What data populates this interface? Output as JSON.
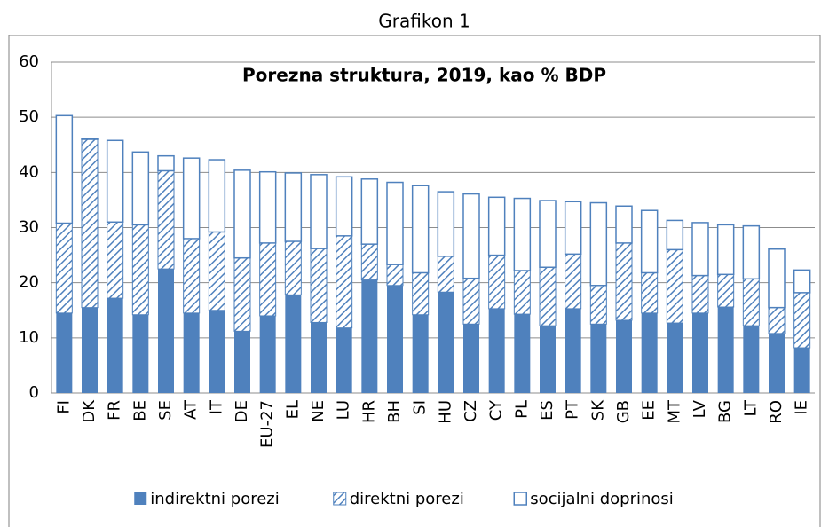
{
  "chart_data": {
    "type": "stacked-bar",
    "caption": "Grafikon 1",
    "title": "Porezna struktura, 2019, kao % BDP",
    "categories": [
      "FI",
      "DK",
      "FR",
      "BE",
      "SE",
      "AT",
      "IT",
      "DE",
      "EU-27",
      "EL",
      "NE",
      "LU",
      "HR",
      "BH",
      "SI",
      "HU",
      "CZ",
      "CY",
      "PL",
      "ES",
      "PT",
      "SK",
      "GB",
      "EE",
      "MT",
      "LV",
      "BG",
      "LT",
      "RO",
      "IE"
    ],
    "series": [
      {
        "name": "indirektni porezi",
        "color": "#4f81bd",
        "fill": "solid",
        "values": [
          14.5,
          15.5,
          17.2,
          14.2,
          22.5,
          14.5,
          15.0,
          11.2,
          14.0,
          17.8,
          12.8,
          11.8,
          20.5,
          19.5,
          14.2,
          18.3,
          12.5,
          15.3,
          14.3,
          12.2,
          15.3,
          12.5,
          13.2,
          14.5,
          12.7,
          14.5,
          15.6,
          12.2,
          10.8,
          8.2
        ]
      },
      {
        "name": "direktni porezi",
        "color": "#4f81bd",
        "fill": "hatch",
        "values": [
          16.3,
          30.5,
          13.8,
          16.3,
          17.8,
          13.5,
          14.2,
          13.3,
          13.2,
          9.7,
          13.4,
          16.7,
          6.5,
          3.8,
          7.6,
          6.5,
          8.3,
          9.7,
          7.9,
          10.6,
          9.9,
          7.0,
          14.0,
          7.3,
          13.3,
          6.8,
          5.9,
          8.5,
          4.7,
          10.0
        ]
      },
      {
        "name": "socijalni doprinosi",
        "color": "#4f81bd",
        "fill": "outline",
        "values": [
          19.5,
          0.2,
          14.8,
          13.2,
          2.7,
          14.6,
          13.1,
          15.9,
          12.9,
          12.4,
          13.4,
          10.7,
          11.8,
          14.9,
          15.8,
          11.7,
          15.3,
          10.5,
          13.1,
          12.1,
          9.5,
          15.0,
          6.7,
          11.3,
          5.3,
          9.6,
          9.0,
          9.6,
          10.6,
          4.1
        ]
      }
    ],
    "ylim": [
      0,
      60
    ],
    "yticks": [
      0,
      10,
      20,
      30,
      40,
      50,
      60
    ],
    "grid": true,
    "legend": "bottom"
  }
}
